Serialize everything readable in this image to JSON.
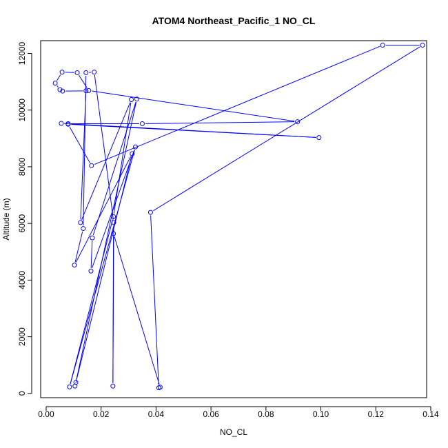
{
  "chart_data": {
    "type": "line",
    "title": "ATOM4 Northeast_Pacific_1 NO_CL",
    "xlabel": "NO_CL",
    "ylabel": "Altitude (m)",
    "xlim": [
      -0.002,
      0.1385
    ],
    "ylim": [
      -150,
      12450
    ],
    "x_ticks": [
      0.0,
      0.02,
      0.04,
      0.06,
      0.08,
      0.1,
      0.12,
      0.14
    ],
    "x_tick_labels": [
      "0.00",
      "0.02",
      "0.04",
      "0.06",
      "0.08",
      "0.10",
      "0.12",
      "0.14"
    ],
    "y_ticks": [
      0,
      2000,
      4000,
      6000,
      8000,
      10000,
      12000
    ],
    "y_tick_labels": [
      "0",
      "2000",
      "4000",
      "6000",
      "8000",
      "10000",
      "12000"
    ],
    "grid": false,
    "colors": {
      "series": "#0000ff",
      "axis": "#000000"
    },
    "series": [
      {
        "marker": "open-circle",
        "points": [
          {
            "x": 0.0415,
            "y": 220
          },
          {
            "x": 0.0245,
            "y": 5640
          },
          {
            "x": 0.0243,
            "y": 260
          },
          {
            "x": 0.0246,
            "y": 6030
          },
          {
            "x": 0.0175,
            "y": 11340
          },
          {
            "x": 0.0145,
            "y": 11320
          },
          {
            "x": 0.0135,
            "y": 5820
          },
          {
            "x": 0.0103,
            "y": 4530
          },
          {
            "x": 0.0313,
            "y": 8460
          },
          {
            "x": 0.0105,
            "y": 260
          },
          {
            "x": 0.0108,
            "y": 390
          },
          {
            "x": 0.033,
            "y": 10390
          },
          {
            "x": 0.0168,
            "y": 5490
          },
          {
            "x": 0.0163,
            "y": 4320
          },
          {
            "x": 0.0325,
            "y": 8700
          },
          {
            "x": 0.0085,
            "y": 230
          },
          {
            "x": 0.0245,
            "y": 6240
          },
          {
            "x": 0.031,
            "y": 10370
          },
          {
            "x": 0.0125,
            "y": 6030
          },
          {
            "x": 0.0145,
            "y": 10680
          },
          {
            "x": 0.006,
            "y": 10670
          },
          {
            "x": 0.005,
            "y": 10720
          },
          {
            "x": 0.0033,
            "y": 10950
          },
          {
            "x": 0.0058,
            "y": 11340
          },
          {
            "x": 0.0113,
            "y": 11320
          },
          {
            "x": 0.0155,
            "y": 10690
          },
          {
            "x": 0.0915,
            "y": 9590
          },
          {
            "x": 0.035,
            "y": 9520
          },
          {
            "x": 0.008,
            "y": 9520
          },
          {
            "x": 0.0055,
            "y": 9530
          },
          {
            "x": 0.0993,
            "y": 9030
          },
          {
            "x": 0.008,
            "y": 9500
          },
          {
            "x": 0.0165,
            "y": 8040
          },
          {
            "x": 0.1225,
            "y": 12290
          },
          {
            "x": 0.137,
            "y": 12290
          },
          {
            "x": 0.038,
            "y": 6390
          },
          {
            "x": 0.041,
            "y": 200
          }
        ]
      }
    ]
  }
}
